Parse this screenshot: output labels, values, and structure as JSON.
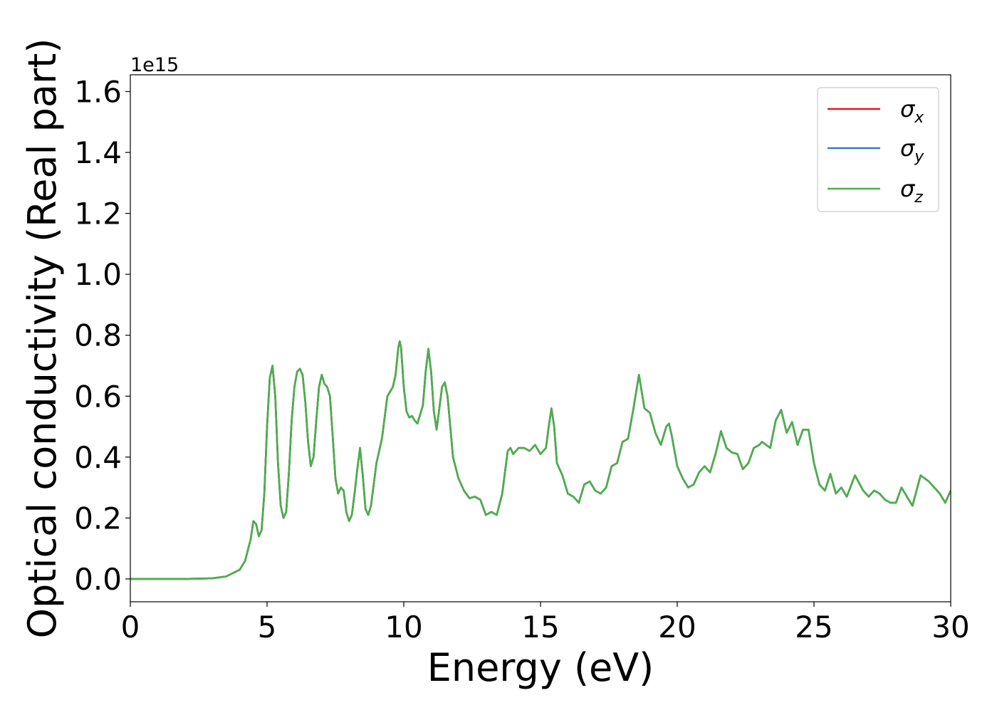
{
  "chart_data": {
    "type": "line",
    "xlabel": "Energy (eV)",
    "ylabel": "Optical conductivity (Real part)",
    "y_offset_label": "1e15",
    "xlim": [
      0,
      30
    ],
    "xticks": [
      0,
      5,
      10,
      15,
      20,
      25,
      30
    ],
    "ylim": [
      -0.075,
      1.655
    ],
    "yticks": [
      {
        "value": 0,
        "label": "0.0"
      },
      {
        "value": 0.2,
        "label": "0.2"
      },
      {
        "value": 0.4,
        "label": "0.4"
      },
      {
        "value": 0.6,
        "label": "0.6"
      },
      {
        "value": 0.8,
        "label": "0.8"
      },
      {
        "value": 1.0,
        "label": "1.0"
      },
      {
        "value": 1.2,
        "label": "1.2"
      },
      {
        "value": 1.4,
        "label": "1.4"
      },
      {
        "value": 1.6,
        "label": "1.6"
      }
    ],
    "grid": false,
    "legend": "upper right",
    "x": [
      0,
      1,
      2,
      3,
      3.5,
      4,
      4.2,
      4.4,
      4.5,
      4.6,
      4.7,
      4.8,
      4.9,
      5.0,
      5.1,
      5.2,
      5.3,
      5.4,
      5.5,
      5.6,
      5.7,
      5.8,
      5.9,
      6.0,
      6.1,
      6.2,
      6.3,
      6.4,
      6.5,
      6.6,
      6.7,
      6.8,
      6.9,
      7.0,
      7.1,
      7.2,
      7.3,
      7.4,
      7.5,
      7.6,
      7.7,
      7.8,
      7.9,
      8.0,
      8.1,
      8.2,
      8.3,
      8.4,
      8.5,
      8.6,
      8.7,
      8.8,
      8.9,
      9.0,
      9.2,
      9.4,
      9.6,
      9.7,
      9.8,
      9.85,
      9.9,
      10.0,
      10.1,
      10.2,
      10.3,
      10.4,
      10.5,
      10.7,
      10.8,
      10.9,
      11.0,
      11.1,
      11.2,
      11.3,
      11.4,
      11.5,
      11.6,
      11.7,
      11.8,
      12.0,
      12.2,
      12.4,
      12.6,
      12.8,
      13.0,
      13.2,
      13.4,
      13.6,
      13.8,
      13.9,
      14.0,
      14.2,
      14.4,
      14.6,
      14.8,
      15.0,
      15.2,
      15.3,
      15.4,
      15.5,
      15.6,
      15.8,
      16.0,
      16.2,
      16.4,
      16.6,
      16.8,
      17.0,
      17.2,
      17.4,
      17.6,
      17.8,
      18.0,
      18.2,
      18.4,
      18.6,
      18.8,
      19.0,
      19.2,
      19.4,
      19.6,
      19.7,
      19.8,
      20.0,
      20.2,
      20.4,
      20.6,
      20.8,
      21.0,
      21.2,
      21.4,
      21.6,
      21.8,
      22.0,
      22.2,
      22.4,
      22.6,
      22.8,
      23.0,
      23.1,
      23.4,
      23.6,
      23.8,
      24.0,
      24.2,
      24.4,
      24.6,
      24.8,
      25.0,
      25.2,
      25.4,
      25.6,
      25.8,
      26.0,
      26.2,
      26.5,
      26.8,
      27.0,
      27.2,
      27.4,
      27.6,
      27.8,
      28.0,
      28.2,
      28.4,
      28.6,
      28.9,
      29.2,
      29.4,
      29.6,
      29.8,
      30.0
    ],
    "series": [
      {
        "name": "σx",
        "color": "#e41a1c",
        "values": [
          0,
          0,
          0,
          0.002,
          0.008,
          0.03,
          0.06,
          0.13,
          0.19,
          0.18,
          0.14,
          0.16,
          0.28,
          0.5,
          0.66,
          0.7,
          0.6,
          0.38,
          0.24,
          0.2,
          0.22,
          0.35,
          0.52,
          0.63,
          0.68,
          0.69,
          0.67,
          0.58,
          0.45,
          0.37,
          0.4,
          0.52,
          0.63,
          0.67,
          0.64,
          0.63,
          0.6,
          0.47,
          0.33,
          0.28,
          0.3,
          0.29,
          0.22,
          0.19,
          0.21,
          0.28,
          0.36,
          0.43,
          0.34,
          0.23,
          0.21,
          0.24,
          0.31,
          0.38,
          0.46,
          0.6,
          0.63,
          0.67,
          0.76,
          0.78,
          0.76,
          0.63,
          0.55,
          0.53,
          0.535,
          0.52,
          0.51,
          0.57,
          0.68,
          0.755,
          0.68,
          0.55,
          0.49,
          0.56,
          0.63,
          0.645,
          0.6,
          0.5,
          0.4,
          0.33,
          0.29,
          0.265,
          0.27,
          0.26,
          0.21,
          0.22,
          0.21,
          0.28,
          0.42,
          0.43,
          0.41,
          0.43,
          0.43,
          0.42,
          0.44,
          0.41,
          0.43,
          0.5,
          0.56,
          0.5,
          0.38,
          0.34,
          0.28,
          0.27,
          0.25,
          0.31,
          0.32,
          0.29,
          0.28,
          0.3,
          0.37,
          0.38,
          0.45,
          0.46,
          0.56,
          0.67,
          0.56,
          0.545,
          0.48,
          0.44,
          0.5,
          0.51,
          0.47,
          0.37,
          0.33,
          0.3,
          0.31,
          0.35,
          0.37,
          0.35,
          0.41,
          0.485,
          0.43,
          0.415,
          0.41,
          0.36,
          0.38,
          0.43,
          0.44,
          0.45,
          0.43,
          0.52,
          0.555,
          0.48,
          0.515,
          0.44,
          0.49,
          0.49,
          0.38,
          0.31,
          0.29,
          0.345,
          0.28,
          0.3,
          0.27,
          0.34,
          0.29,
          0.27,
          0.29,
          0.28,
          0.26,
          0.25,
          0.25,
          0.3,
          0.27,
          0.24,
          0.34,
          0.32,
          0.3,
          0.28,
          0.25,
          0.29
        ]
      },
      {
        "name": "σy",
        "color": "#377eb8",
        "values": [
          0,
          0,
          0,
          0.002,
          0.008,
          0.03,
          0.06,
          0.13,
          0.19,
          0.18,
          0.14,
          0.16,
          0.28,
          0.5,
          0.66,
          0.7,
          0.6,
          0.38,
          0.24,
          0.2,
          0.22,
          0.35,
          0.52,
          0.63,
          0.68,
          0.69,
          0.67,
          0.58,
          0.45,
          0.37,
          0.4,
          0.52,
          0.63,
          0.67,
          0.64,
          0.63,
          0.6,
          0.47,
          0.33,
          0.28,
          0.3,
          0.29,
          0.22,
          0.19,
          0.21,
          0.28,
          0.36,
          0.43,
          0.34,
          0.23,
          0.21,
          0.24,
          0.31,
          0.38,
          0.46,
          0.6,
          0.63,
          0.67,
          0.76,
          0.78,
          0.76,
          0.63,
          0.55,
          0.53,
          0.535,
          0.52,
          0.51,
          0.57,
          0.68,
          0.755,
          0.68,
          0.55,
          0.49,
          0.56,
          0.63,
          0.645,
          0.6,
          0.5,
          0.4,
          0.33,
          0.29,
          0.265,
          0.27,
          0.26,
          0.21,
          0.22,
          0.21,
          0.28,
          0.42,
          0.43,
          0.41,
          0.43,
          0.43,
          0.42,
          0.44,
          0.41,
          0.43,
          0.5,
          0.56,
          0.5,
          0.38,
          0.34,
          0.28,
          0.27,
          0.25,
          0.31,
          0.32,
          0.29,
          0.28,
          0.3,
          0.37,
          0.38,
          0.45,
          0.46,
          0.56,
          0.67,
          0.56,
          0.545,
          0.48,
          0.44,
          0.5,
          0.51,
          0.47,
          0.37,
          0.33,
          0.3,
          0.31,
          0.35,
          0.37,
          0.35,
          0.41,
          0.485,
          0.43,
          0.415,
          0.41,
          0.36,
          0.38,
          0.43,
          0.44,
          0.45,
          0.43,
          0.52,
          0.555,
          0.48,
          0.515,
          0.44,
          0.49,
          0.49,
          0.38,
          0.31,
          0.29,
          0.345,
          0.28,
          0.3,
          0.27,
          0.34,
          0.29,
          0.27,
          0.29,
          0.28,
          0.26,
          0.25,
          0.25,
          0.3,
          0.27,
          0.24,
          0.34,
          0.32,
          0.3,
          0.28,
          0.25,
          0.29
        ]
      },
      {
        "name": "σz",
        "color": "#4daf4a",
        "values": [
          0,
          0,
          0,
          0.002,
          0.008,
          0.03,
          0.06,
          0.13,
          0.19,
          0.18,
          0.14,
          0.16,
          0.28,
          0.5,
          0.66,
          0.7,
          0.6,
          0.38,
          0.24,
          0.2,
          0.22,
          0.35,
          0.52,
          0.63,
          0.68,
          0.69,
          0.67,
          0.58,
          0.45,
          0.37,
          0.4,
          0.52,
          0.63,
          0.67,
          0.64,
          0.63,
          0.6,
          0.47,
          0.33,
          0.28,
          0.3,
          0.29,
          0.22,
          0.19,
          0.21,
          0.28,
          0.36,
          0.43,
          0.34,
          0.23,
          0.21,
          0.24,
          0.31,
          0.38,
          0.46,
          0.6,
          0.63,
          0.67,
          0.76,
          0.78,
          0.76,
          0.63,
          0.55,
          0.53,
          0.535,
          0.52,
          0.51,
          0.57,
          0.68,
          0.755,
          0.68,
          0.55,
          0.49,
          0.56,
          0.63,
          0.645,
          0.6,
          0.5,
          0.4,
          0.33,
          0.29,
          0.265,
          0.27,
          0.26,
          0.21,
          0.22,
          0.21,
          0.28,
          0.42,
          0.43,
          0.41,
          0.43,
          0.43,
          0.42,
          0.44,
          0.41,
          0.43,
          0.5,
          0.56,
          0.5,
          0.38,
          0.34,
          0.28,
          0.27,
          0.25,
          0.31,
          0.32,
          0.29,
          0.28,
          0.3,
          0.37,
          0.38,
          0.45,
          0.46,
          0.56,
          0.67,
          0.56,
          0.545,
          0.48,
          0.44,
          0.5,
          0.51,
          0.47,
          0.37,
          0.33,
          0.3,
          0.31,
          0.35,
          0.37,
          0.35,
          0.41,
          0.485,
          0.43,
          0.415,
          0.41,
          0.36,
          0.38,
          0.43,
          0.44,
          0.45,
          0.43,
          0.52,
          0.555,
          0.48,
          0.515,
          0.44,
          0.49,
          0.49,
          0.38,
          0.31,
          0.29,
          0.345,
          0.28,
          0.3,
          0.27,
          0.34,
          0.29,
          0.27,
          0.29,
          0.28,
          0.26,
          0.25,
          0.25,
          0.3,
          0.27,
          0.24,
          0.34,
          0.32,
          0.3,
          0.28,
          0.25,
          0.29
        ]
      }
    ]
  }
}
